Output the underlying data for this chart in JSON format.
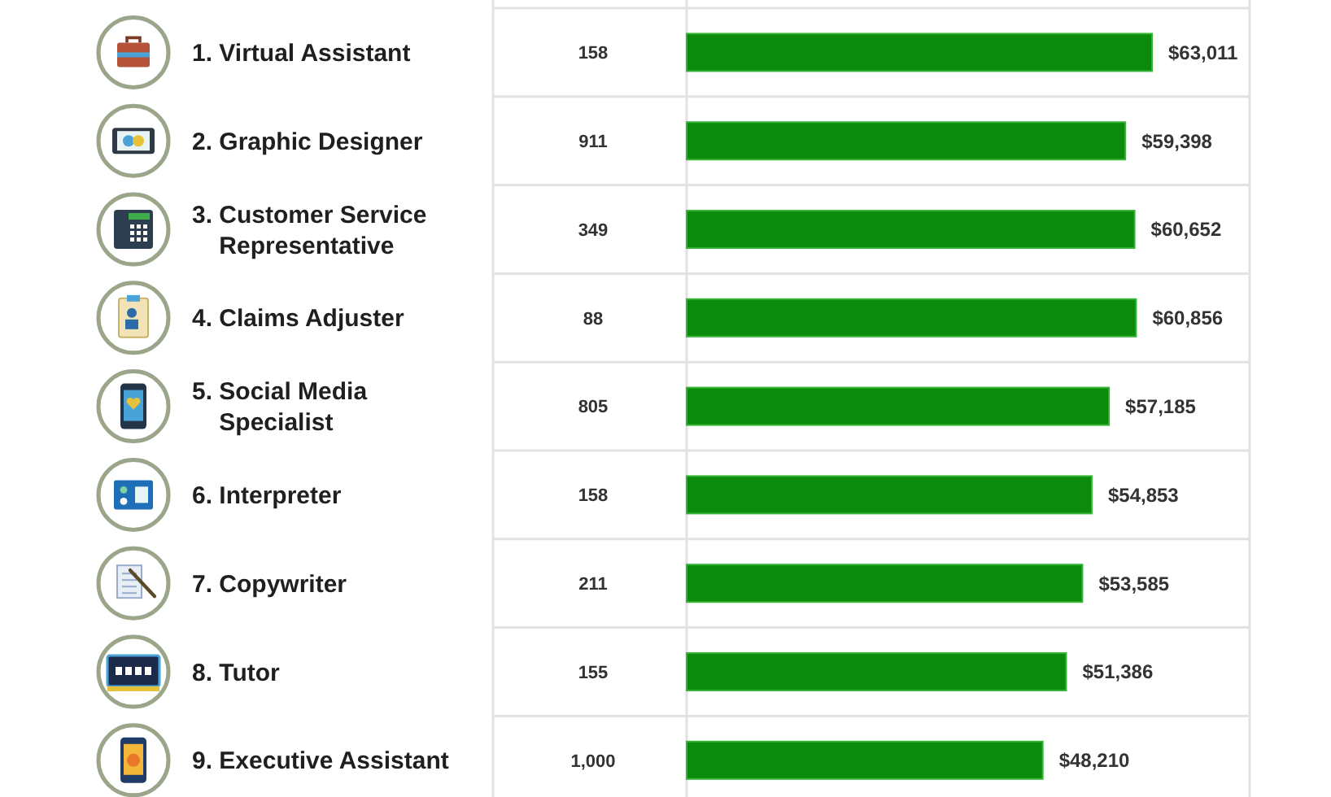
{
  "chart_data": {
    "type": "bar",
    "orientation": "horizontal",
    "categories": [
      "1. Virtual Assistant",
      "2. Graphic Designer",
      "3. Customer Service Representative",
      "4. Claims Adjuster",
      "5. Social Media Specialist",
      "6. Interpreter",
      "7. Copywriter",
      "8. Tutor",
      "9. Executive Assistant"
    ],
    "values": [
      63011,
      59398,
      60652,
      60856,
      57185,
      54853,
      53585,
      51386,
      48210
    ],
    "value_labels": [
      "$63,011",
      "$59,398",
      "$60,652",
      "$60,856",
      "$57,185",
      "$54,853",
      "$53,585",
      "$51,386",
      "$48,210"
    ],
    "color": "#0b8a0b",
    "annotations": [
      "158",
      "911",
      "349",
      "88",
      "805",
      "158",
      "211",
      "155",
      "1,000"
    ]
  }
}
